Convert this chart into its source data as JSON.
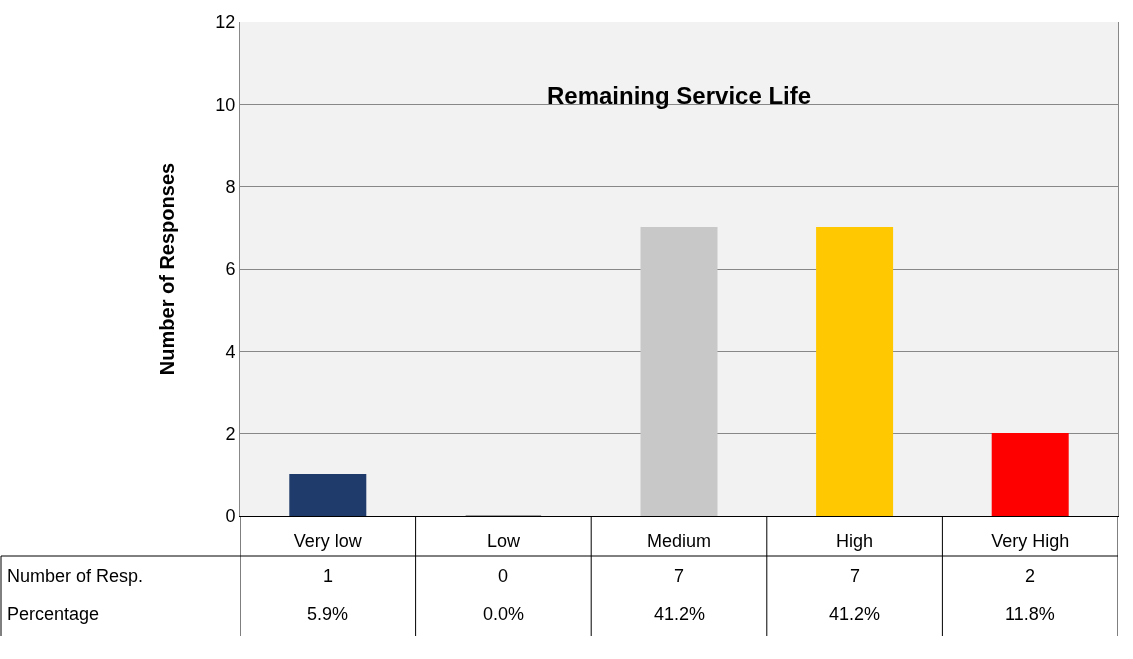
{
  "chart_data": {
    "type": "bar",
    "title": "Remaining Service Life",
    "ylabel": "Number of Responses",
    "categories": [
      "Very low",
      "Low",
      "Medium",
      "High",
      "Very High"
    ],
    "values": [
      1,
      0,
      7,
      7,
      2
    ],
    "colors": [
      "#1f3b6b",
      "#808080",
      "#c8c8c8",
      "#ffc800",
      "#ff0000"
    ],
    "data_labels": true,
    "annotations": [
      "Number of Resp.",
      "Percentage",
      "5.9%",
      "0.0%",
      "41.2%",
      "41.2%",
      "11.8%"
    ],
    "ylim": [
      0,
      12
    ],
    "yticks": [
      0,
      2,
      4,
      6,
      8,
      10,
      12
    ],
    "grid": "y",
    "legend": false
  }
}
